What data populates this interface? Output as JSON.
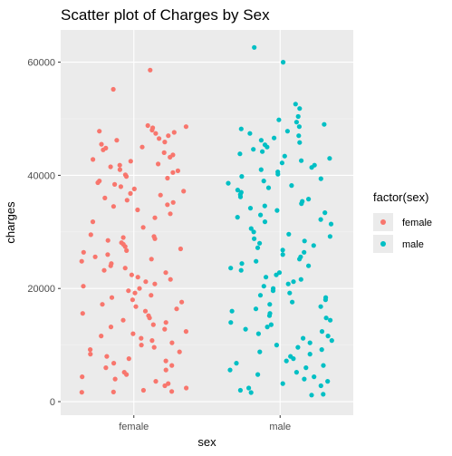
{
  "chart_data": {
    "type": "scatter",
    "title": "Scatter plot of Charges by Sex",
    "xlabel": "sex",
    "ylabel": "charges",
    "categories": [
      "female",
      "male"
    ],
    "ylim": [
      -2400,
      65700
    ],
    "yticks": [
      0,
      20000,
      40000,
      60000
    ],
    "grid": true,
    "jitter": true,
    "legend": {
      "title": "factor(sex)",
      "position": "right",
      "entries": [
        {
          "label": "female",
          "color": "#F8766D"
        },
        {
          "label": "male",
          "color": "#00BFC4"
        }
      ]
    },
    "series": [
      {
        "name": "female",
        "color": "#F8766D",
        "category": "female",
        "values": [
          58600,
          55200,
          48800,
          48600,
          48400,
          48000,
          47800,
          47600,
          47400,
          47000,
          46500,
          46200,
          45900,
          45500,
          45000,
          44800,
          44500,
          44000,
          43600,
          43200,
          42800,
          42500,
          42000,
          41800,
          41500,
          41000,
          40800,
          40500,
          40100,
          39800,
          39500,
          39000,
          38700,
          38400,
          38000,
          37600,
          37200,
          36800,
          36500,
          36000,
          35600,
          35200,
          34800,
          34500,
          33900,
          33200,
          32500,
          31800,
          30800,
          29500,
          29200,
          29000,
          28800,
          28500,
          28100,
          27800,
          27400,
          27000,
          26700,
          26400,
          26000,
          25600,
          25200,
          24800,
          24400,
          24000,
          23600,
          23200,
          22800,
          22400,
          22000,
          21600,
          21200,
          20800,
          20400,
          20000,
          19600,
          19200,
          18800,
          18400,
          18000,
          17600,
          17200,
          16800,
          16400,
          16000,
          15600,
          15200,
          14800,
          14400,
          14000,
          13600,
          13200,
          12800,
          12400,
          12000,
          11600,
          11200,
          10800,
          10400,
          10000,
          9600,
          9200,
          8800,
          8400,
          8000,
          7600,
          7200,
          6800,
          6400,
          6000,
          5600,
          5200,
          4800,
          4400,
          4000,
          3600,
          3200,
          2800,
          2400,
          2000,
          1800,
          1700,
          1650
        ]
      },
      {
        "name": "male",
        "color": "#00BFC4",
        "category": "male",
        "values": [
          62600,
          60000,
          52600,
          51800,
          50400,
          49800,
          49400,
          49000,
          48600,
          48200,
          47800,
          47400,
          47000,
          46600,
          46200,
          45800,
          45400,
          45000,
          44600,
          44200,
          43800,
          43400,
          43000,
          42600,
          42200,
          41800,
          41400,
          41000,
          40600,
          40200,
          39800,
          39400,
          39000,
          38600,
          38200,
          37800,
          37400,
          37000,
          36600,
          36200,
          35800,
          35400,
          35000,
          34600,
          34200,
          33800,
          33400,
          33000,
          32600,
          32200,
          31800,
          31400,
          30600,
          30000,
          29600,
          29200,
          28800,
          28400,
          28000,
          27600,
          27200,
          26800,
          26400,
          26000,
          25600,
          25200,
          24800,
          24400,
          24000,
          23600,
          23200,
          22800,
          22400,
          22000,
          21600,
          21200,
          20800,
          20400,
          20000,
          19600,
          19200,
          18800,
          18400,
          18000,
          17600,
          17200,
          16800,
          16400,
          16000,
          15600,
          15200,
          14800,
          14400,
          14000,
          13600,
          13200,
          12800,
          12400,
          12000,
          11600,
          11200,
          10800,
          10400,
          10000,
          9600,
          9200,
          8800,
          8400,
          8000,
          7600,
          7200,
          6800,
          6400,
          6000,
          5600,
          5200,
          4800,
          4400,
          4000,
          3600,
          3200,
          2800,
          2400,
          2000,
          1600,
          1300,
          1150
        ]
      }
    ]
  }
}
